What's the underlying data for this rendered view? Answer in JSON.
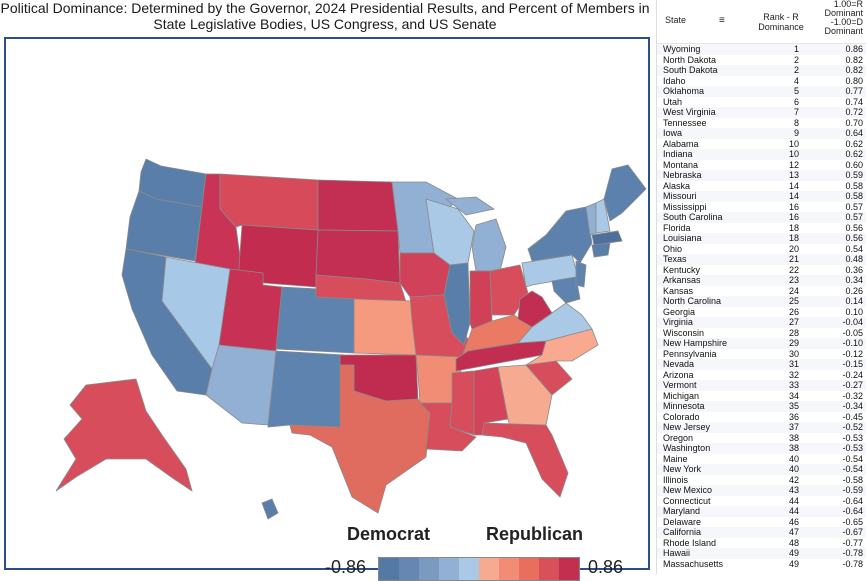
{
  "title": "Political Dominance:  Determined by the Governor, 2024 Presidential Results, and Percent of Members in State Legislative Bodies, US Congress, and US Senate",
  "legend": {
    "dem_label": "Democrat",
    "rep_label": "Republican",
    "min": "-0.86",
    "max": "0.86",
    "colors": [
      "#5579a5",
      "#6687b1",
      "#7b9ac0",
      "#91b0d3",
      "#a9c9e6",
      "#f6ab91",
      "#f18d74",
      "#e86e5d",
      "#d8505a",
      "#c32f4f"
    ]
  },
  "table": {
    "col_state": "State",
    "sort_icon": "sort-icon",
    "col_rank_l1": "Rank - R",
    "col_rank_l2": "Dominance",
    "col_dom_l1": "1.00=R",
    "col_dom_l2": "Dominant",
    "col_dom_l3": "-1.00=D",
    "col_dom_l4": "Dominant",
    "rows": [
      {
        "state": "Wyoming",
        "rank": "1",
        "value": "0.86"
      },
      {
        "state": "North Dakota",
        "rank": "2",
        "value": "0.82"
      },
      {
        "state": "South Dakota",
        "rank": "2",
        "value": "0.82"
      },
      {
        "state": "Idaho",
        "rank": "4",
        "value": "0.80"
      },
      {
        "state": "Oklahoma",
        "rank": "5",
        "value": "0.77"
      },
      {
        "state": "Utah",
        "rank": "6",
        "value": "0.74"
      },
      {
        "state": "West Virginia",
        "rank": "7",
        "value": "0.72"
      },
      {
        "state": "Tennessee",
        "rank": "8",
        "value": "0.70"
      },
      {
        "state": "Iowa",
        "rank": "9",
        "value": "0.64"
      },
      {
        "state": "Alabama",
        "rank": "10",
        "value": "0.62"
      },
      {
        "state": "Indiana",
        "rank": "10",
        "value": "0.62"
      },
      {
        "state": "Montana",
        "rank": "12",
        "value": "0.60"
      },
      {
        "state": "Nebraska",
        "rank": "13",
        "value": "0.59"
      },
      {
        "state": "Alaska",
        "rank": "14",
        "value": "0.58"
      },
      {
        "state": "Missouri",
        "rank": "14",
        "value": "0.58"
      },
      {
        "state": "Mississippi",
        "rank": "16",
        "value": "0.57"
      },
      {
        "state": "South Carolina",
        "rank": "16",
        "value": "0.57"
      },
      {
        "state": "Florida",
        "rank": "18",
        "value": "0.56"
      },
      {
        "state": "Louisiana",
        "rank": "18",
        "value": "0.56"
      },
      {
        "state": "Ohio",
        "rank": "20",
        "value": "0.54"
      },
      {
        "state": "Texas",
        "rank": "21",
        "value": "0.48"
      },
      {
        "state": "Kentucky",
        "rank": "22",
        "value": "0.36"
      },
      {
        "state": "Arkansas",
        "rank": "23",
        "value": "0.34"
      },
      {
        "state": "Kansas",
        "rank": "24",
        "value": "0.26"
      },
      {
        "state": "North Carolina",
        "rank": "25",
        "value": "0.14"
      },
      {
        "state": "Georgia",
        "rank": "26",
        "value": "0.10"
      },
      {
        "state": "Virginia",
        "rank": "27",
        "value": "-0.04"
      },
      {
        "state": "Wisconsin",
        "rank": "28",
        "value": "-0.05"
      },
      {
        "state": "New Hampshire",
        "rank": "29",
        "value": "-0.10"
      },
      {
        "state": "Pennsylvania",
        "rank": "30",
        "value": "-0.12"
      },
      {
        "state": "Nevada",
        "rank": "31",
        "value": "-0.15"
      },
      {
        "state": "Arizona",
        "rank": "32",
        "value": "-0.24"
      },
      {
        "state": "Vermont",
        "rank": "33",
        "value": "-0.27"
      },
      {
        "state": "Michigan",
        "rank": "34",
        "value": "-0.32"
      },
      {
        "state": "Minnesota",
        "rank": "35",
        "value": "-0.34"
      },
      {
        "state": "Colorado",
        "rank": "36",
        "value": "-0.45"
      },
      {
        "state": "New Jersey",
        "rank": "37",
        "value": "-0.52"
      },
      {
        "state": "Oregon",
        "rank": "38",
        "value": "-0.53"
      },
      {
        "state": "Washington",
        "rank": "38",
        "value": "-0.53"
      },
      {
        "state": "Maine",
        "rank": "40",
        "value": "-0.54"
      },
      {
        "state": "New York",
        "rank": "40",
        "value": "-0.54"
      },
      {
        "state": "Illinois",
        "rank": "42",
        "value": "-0.58"
      },
      {
        "state": "New Mexico",
        "rank": "43",
        "value": "-0.59"
      },
      {
        "state": "Connecticut",
        "rank": "44",
        "value": "-0.64"
      },
      {
        "state": "Maryland",
        "rank": "44",
        "value": "-0.64"
      },
      {
        "state": "Delaware",
        "rank": "46",
        "value": "-0.65"
      },
      {
        "state": "California",
        "rank": "47",
        "value": "-0.67"
      },
      {
        "state": "Rhode Island",
        "rank": "48",
        "value": "-0.77"
      },
      {
        "state": "Hawaii",
        "rank": "49",
        "value": "-0.78"
      },
      {
        "state": "Massachusetts",
        "rank": "49",
        "value": "-0.78"
      }
    ]
  }
}
